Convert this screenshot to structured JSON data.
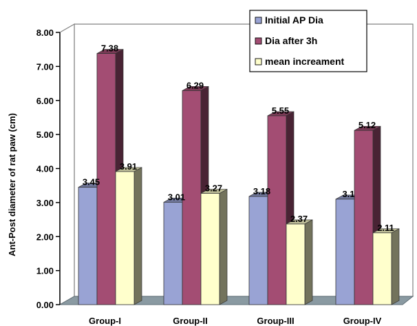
{
  "chart_data": {
    "type": "bar",
    "categories": [
      "Group-I",
      "Group-II",
      "Group-III",
      "Group-IV"
    ],
    "series": [
      {
        "name": "Initial AP Dia",
        "values": [
          3.45,
          3.01,
          3.18,
          3.1
        ],
        "color": "#99A3D4"
      },
      {
        "name": "Dia after 3h",
        "values": [
          7.38,
          6.29,
          5.55,
          5.12
        ],
        "color": "#A34D73"
      },
      {
        "name": "mean increament",
        "values": [
          3.91,
          3.27,
          2.37,
          2.11
        ],
        "color": "#FFFFCC"
      }
    ],
    "data_labels": [
      [
        "3.45",
        "7.38",
        "3.91"
      ],
      [
        "3.01",
        "6.29",
        "3.27"
      ],
      [
        "3.18",
        "5.55",
        "2.37"
      ],
      [
        "3.1",
        "5.12",
        "2.11"
      ]
    ],
    "title": "",
    "xlabel": "",
    "ylabel": "Ant-Post diameter of rat paw (cm)",
    "ylim": [
      0,
      8
    ],
    "yticks": [
      "0.00",
      "1.00",
      "2.00",
      "3.00",
      "4.00",
      "5.00",
      "6.00",
      "7.00",
      "8.00"
    ],
    "grid": false,
    "legend_position": "top-right",
    "three_d": true
  }
}
